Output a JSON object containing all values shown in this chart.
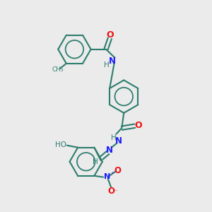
{
  "bg_color": "#ebebeb",
  "bond_color": "#2d7d6e",
  "n_color": "#1a1aff",
  "o_color": "#ee1111",
  "line_width": 1.5,
  "fig_w": 3.0,
  "fig_h": 3.0,
  "dpi": 100,
  "xlim": [
    0,
    10
  ],
  "ylim": [
    0,
    10
  ]
}
